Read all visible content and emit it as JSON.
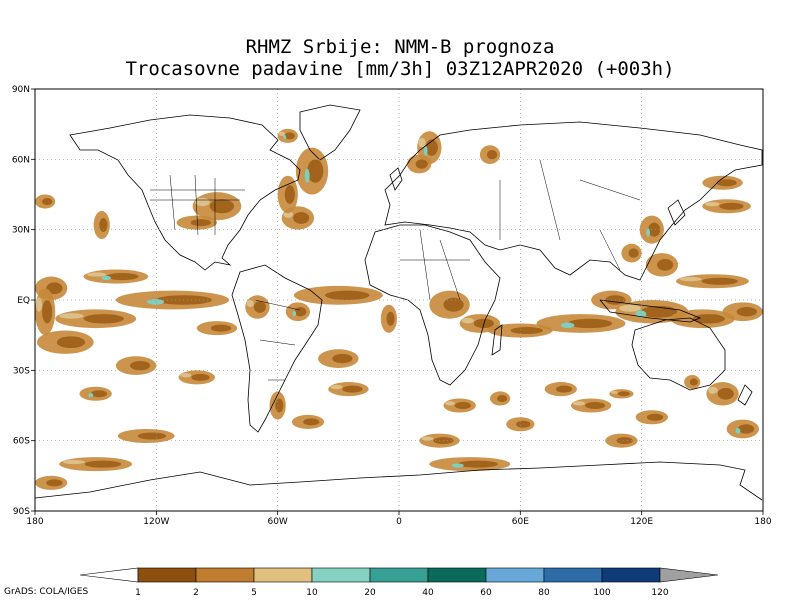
{
  "title": {
    "line1": "RHMZ Srbije: NMM-B prognoza",
    "line2": "Trocasovne padavine [mm/3h] 03Z12APR2020 (+003h)"
  },
  "axes": {
    "lat_labels": [
      "90N",
      "60N",
      "30N",
      "EQ",
      "30S",
      "60S",
      "90S"
    ],
    "lat_values": [
      90,
      60,
      30,
      0,
      -30,
      -60,
      -90
    ],
    "lon_labels": [
      "180",
      "120W",
      "60W",
      "0",
      "60E",
      "120E",
      "180"
    ],
    "lon_values": [
      -180,
      -120,
      -60,
      0,
      60,
      120,
      180
    ],
    "grid": true
  },
  "colorbar": {
    "levels": [
      "1",
      "2",
      "5",
      "10",
      "20",
      "40",
      "60",
      "80",
      "100",
      "120"
    ],
    "colors": [
      "#8c4f0d",
      "#c07c2f",
      "#dfc07f",
      "#86d2c2",
      "#36a094",
      "#0a6a5c",
      "#68a8d8",
      "#2e6ca8",
      "#0f3c78"
    ],
    "under_color": "#ffffff",
    "over_color": "#a0a0a0"
  },
  "footer": "GrADS: COLA/IGES",
  "precip_colors": {
    "dark": "#9a5a14",
    "mid": "#c7883a",
    "light": "#dcc08a",
    "teal": "#7fcfbf"
  },
  "precip_regions": [
    {
      "lon": -112,
      "lat": 0,
      "rx": 28,
      "ry": 4
    },
    {
      "lon": -150,
      "lat": -8,
      "rx": 20,
      "ry": 4
    },
    {
      "lon": -165,
      "lat": -18,
      "rx": 14,
      "ry": 5
    },
    {
      "lon": -130,
      "lat": -28,
      "rx": 10,
      "ry": 4
    },
    {
      "lon": -100,
      "lat": -33,
      "rx": 9,
      "ry": 3
    },
    {
      "lon": -150,
      "lat": -40,
      "rx": 8,
      "ry": 3
    },
    {
      "lon": -125,
      "lat": -58,
      "rx": 14,
      "ry": 3
    },
    {
      "lon": -150,
      "lat": -70,
      "rx": 18,
      "ry": 3
    },
    {
      "lon": -172,
      "lat": -78,
      "rx": 8,
      "ry": 3
    },
    {
      "lon": -172,
      "lat": 5,
      "rx": 8,
      "ry": 5
    },
    {
      "lon": -140,
      "lat": 10,
      "rx": 16,
      "ry": 3
    },
    {
      "lon": -147,
      "lat": 32,
      "rx": 4,
      "ry": 6
    },
    {
      "lon": -175,
      "lat": 42,
      "rx": 5,
      "ry": 3
    },
    {
      "lon": -90,
      "lat": 40,
      "rx": 12,
      "ry": 6
    },
    {
      "lon": -100,
      "lat": 33,
      "rx": 10,
      "ry": 3
    },
    {
      "lon": -43,
      "lat": 55,
      "rx": 8,
      "ry": 10
    },
    {
      "lon": -50,
      "lat": 35,
      "rx": 8,
      "ry": 5
    },
    {
      "lon": -55,
      "lat": 45,
      "rx": 5,
      "ry": 8
    },
    {
      "lon": -30,
      "lat": 2,
      "rx": 22,
      "ry": 4
    },
    {
      "lon": -70,
      "lat": -3,
      "rx": 6,
      "ry": 5
    },
    {
      "lon": -50,
      "lat": -5,
      "rx": 6,
      "ry": 4
    },
    {
      "lon": -30,
      "lat": -25,
      "rx": 10,
      "ry": 4
    },
    {
      "lon": -25,
      "lat": -38,
      "rx": 10,
      "ry": 3
    },
    {
      "lon": -45,
      "lat": -52,
      "rx": 8,
      "ry": 3
    },
    {
      "lon": -60,
      "lat": -45,
      "rx": 4,
      "ry": 6
    },
    {
      "lon": 15,
      "lat": 65,
      "rx": 6,
      "ry": 7
    },
    {
      "lon": -5,
      "lat": -8,
      "rx": 4,
      "ry": 6
    },
    {
      "lon": 25,
      "lat": -2,
      "rx": 10,
      "ry": 6
    },
    {
      "lon": 40,
      "lat": -10,
      "rx": 10,
      "ry": 4
    },
    {
      "lon": 60,
      "lat": -13,
      "rx": 16,
      "ry": 3
    },
    {
      "lon": 90,
      "lat": -10,
      "rx": 22,
      "ry": 4
    },
    {
      "lon": 30,
      "lat": -45,
      "rx": 8,
      "ry": 3
    },
    {
      "lon": 60,
      "lat": -53,
      "rx": 7,
      "ry": 3
    },
    {
      "lon": 50,
      "lat": -42,
      "rx": 5,
      "ry": 3
    },
    {
      "lon": 20,
      "lat": -60,
      "rx": 10,
      "ry": 3
    },
    {
      "lon": 35,
      "lat": -70,
      "rx": 20,
      "ry": 3
    },
    {
      "lon": 80,
      "lat": -38,
      "rx": 8,
      "ry": 3
    },
    {
      "lon": 95,
      "lat": -45,
      "rx": 10,
      "ry": 3
    },
    {
      "lon": 110,
      "lat": -60,
      "rx": 8,
      "ry": 3
    },
    {
      "lon": 105,
      "lat": 0,
      "rx": 10,
      "ry": 4
    },
    {
      "lon": 125,
      "lat": -5,
      "rx": 18,
      "ry": 5
    },
    {
      "lon": 150,
      "lat": -8,
      "rx": 16,
      "ry": 4
    },
    {
      "lon": 170,
      "lat": -5,
      "rx": 10,
      "ry": 4
    },
    {
      "lon": 155,
      "lat": 8,
      "rx": 18,
      "ry": 3
    },
    {
      "lon": 130,
      "lat": 15,
      "rx": 8,
      "ry": 5
    },
    {
      "lon": 125,
      "lat": 30,
      "rx": 6,
      "ry": 6
    },
    {
      "lon": 162,
      "lat": 40,
      "rx": 12,
      "ry": 3
    },
    {
      "lon": 160,
      "lat": 50,
      "rx": 10,
      "ry": 3
    },
    {
      "lon": 115,
      "lat": 20,
      "rx": 5,
      "ry": 4
    },
    {
      "lon": 160,
      "lat": -40,
      "rx": 8,
      "ry": 5
    },
    {
      "lon": 170,
      "lat": -55,
      "rx": 8,
      "ry": 4
    },
    {
      "lon": 145,
      "lat": -35,
      "rx": 4,
      "ry": 3
    },
    {
      "lon": 110,
      "lat": -40,
      "rx": 6,
      "ry": 2
    },
    {
      "lon": 125,
      "lat": -50,
      "rx": 8,
      "ry": 3
    },
    {
      "lon": -90,
      "lat": -12,
      "rx": 10,
      "ry": 3
    },
    {
      "lon": -55,
      "lat": 70,
      "rx": 5,
      "ry": 3
    },
    {
      "lon": 10,
      "lat": 58,
      "rx": 6,
      "ry": 4
    },
    {
      "lon": 45,
      "lat": 62,
      "rx": 5,
      "ry": 4
    },
    {
      "lon": -175,
      "lat": -5,
      "rx": 5,
      "ry": 10
    }
  ]
}
